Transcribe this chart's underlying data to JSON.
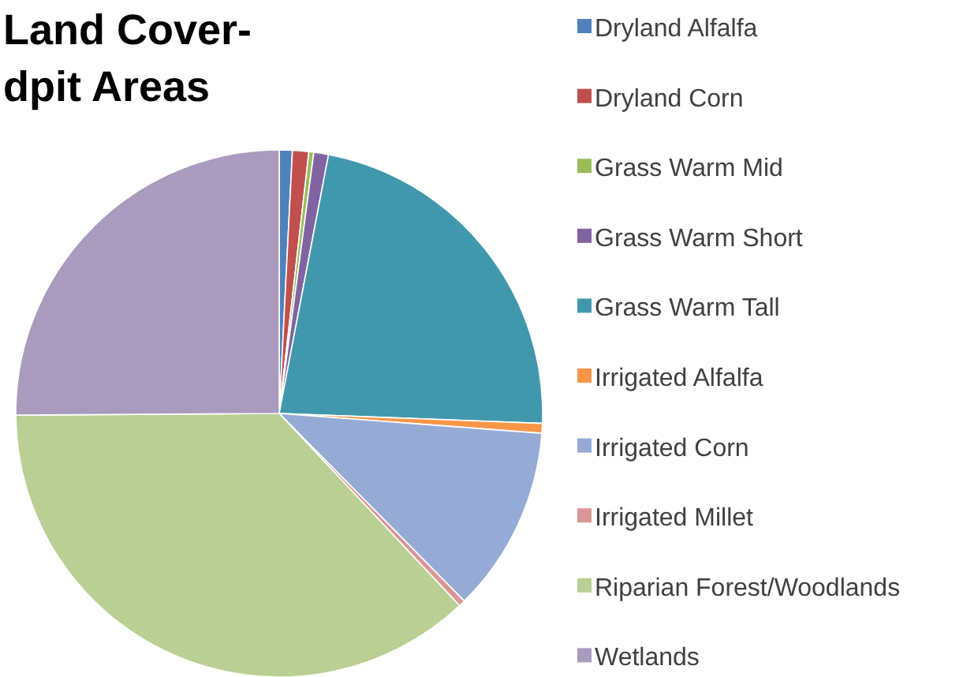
{
  "chart_data": {
    "type": "pie",
    "title": "Land Cover-\ndpit Areas",
    "categories": [
      "Dryland Alfalfa",
      "Dryland Corn",
      "Grass Warm Mid",
      "Grass Warm Short",
      "Grass Warm Tall",
      "Irrigated Alfalfa",
      "Irrigated Corn",
      "Irrigated Millet",
      "Riparian Forest/Woodlands",
      "Wetlands"
    ],
    "values": [
      0.8,
      1.0,
      0.3,
      0.9,
      22.6,
      0.6,
      11.4,
      0.4,
      36.9,
      25.1
    ],
    "colors": [
      "#4f81bd",
      "#c0504d",
      "#9bbb59",
      "#8064a2",
      "#4198ad",
      "#f79646",
      "#95abd5",
      "#d99694",
      "#b9cf94",
      "#a99bbd"
    ],
    "legend": "right"
  }
}
